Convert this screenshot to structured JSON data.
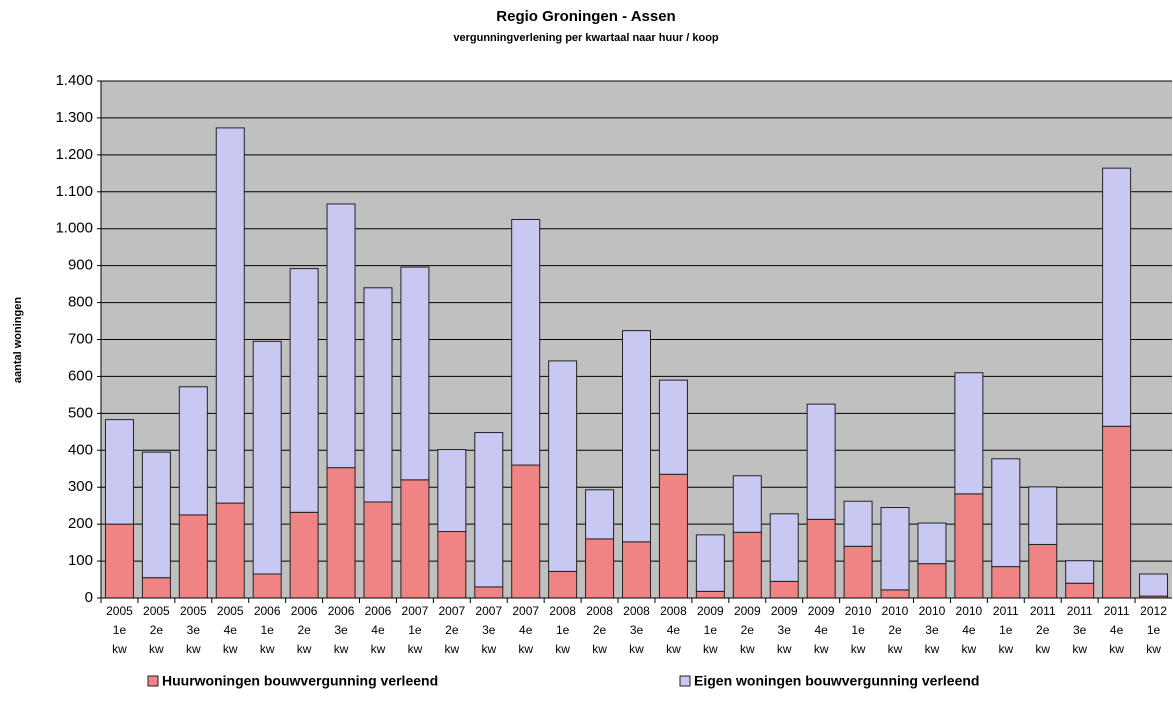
{
  "chart_data": {
    "type": "stacked_bar",
    "title": "Regio Groningen - Assen",
    "subtitle": "vergunningverlening per kwartaal naar huur / koop",
    "y_label": "aantal woningen",
    "categories": [
      [
        "2005",
        "1e",
        "kw"
      ],
      [
        "2005",
        "2e",
        "kw"
      ],
      [
        "2005",
        "3e",
        "kw"
      ],
      [
        "2005",
        "4e",
        "kw"
      ],
      [
        "2006",
        "1e",
        "kw"
      ],
      [
        "2006",
        "2e",
        "kw"
      ],
      [
        "2006",
        "3e",
        "kw"
      ],
      [
        "2006",
        "4e",
        "kw"
      ],
      [
        "2007",
        "1e",
        "kw"
      ],
      [
        "2007",
        "2e",
        "kw"
      ],
      [
        "2007",
        "3e",
        "kw"
      ],
      [
        "2007",
        "4e",
        "kw"
      ],
      [
        "2008",
        "1e",
        "kw"
      ],
      [
        "2008",
        "2e",
        "kw"
      ],
      [
        "2008",
        "3e",
        "kw"
      ],
      [
        "2008",
        "4e",
        "kw"
      ],
      [
        "2009",
        "1e",
        "kw"
      ],
      [
        "2009",
        "2e",
        "kw"
      ],
      [
        "2009",
        "3e",
        "kw"
      ],
      [
        "2009",
        "4e",
        "kw"
      ],
      [
        "2010",
        "1e",
        "kw"
      ],
      [
        "2010",
        "2e",
        "kw"
      ],
      [
        "2010",
        "3e",
        "kw"
      ],
      [
        "2010",
        "4e",
        "kw"
      ],
      [
        "2011",
        "1e",
        "kw"
      ],
      [
        "2011",
        "2e",
        "kw"
      ],
      [
        "2011",
        "3e",
        "kw"
      ],
      [
        "2011",
        "4e",
        "kw"
      ],
      [
        "2012",
        "1e",
        "kw"
      ]
    ],
    "series": [
      {
        "name": "Huurwoningen bouwvergunning verleend",
        "color": "#f08484",
        "values": [
          200,
          55,
          225,
          257,
          65,
          232,
          353,
          260,
          320,
          180,
          30,
          360,
          72,
          160,
          152,
          335,
          18,
          178,
          45,
          213,
          140,
          22,
          93,
          282,
          85,
          145,
          40,
          465,
          5
        ]
      },
      {
        "name": "Eigen woningen bouwvergunning verleend",
        "color": "#c8c8f2",
        "values": [
          283,
          340,
          347,
          1016,
          630,
          660,
          714,
          580,
          576,
          222,
          418,
          665,
          570,
          133,
          572,
          255,
          153,
          153,
          183,
          312,
          122,
          223,
          110,
          328,
          292,
          156,
          61,
          699,
          60
        ]
      }
    ],
    "ylim": [
      0,
      1400
    ],
    "yticks": [
      0,
      100,
      200,
      300,
      400,
      500,
      600,
      700,
      800,
      900,
      {
        "value": 1000,
        "label": "1.000"
      },
      {
        "value": 1100,
        "label": "1.100"
      },
      {
        "value": 1200,
        "label": "1.200"
      },
      {
        "value": 1300,
        "label": "1.300"
      },
      {
        "value": 1400,
        "label": "1.400"
      }
    ],
    "grid": true,
    "legend": "bottom",
    "background": "#c0c0c0"
  }
}
